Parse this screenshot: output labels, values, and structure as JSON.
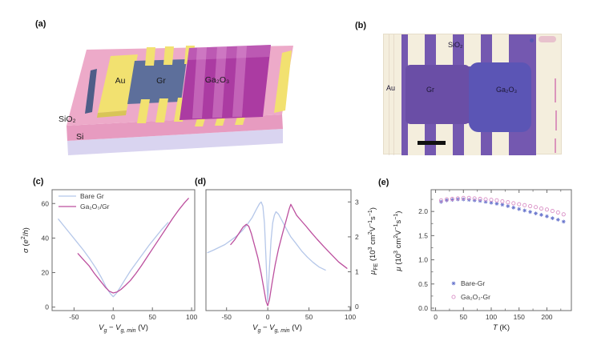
{
  "figure": {
    "panels": {
      "a": {
        "label": "(a)",
        "labels": {
          "au": "Au",
          "gr": "Gr",
          "ga2o3": "Ga₂O₃",
          "sio2": "SiO₂",
          "si": "Si"
        }
      },
      "b": {
        "label": "(b)",
        "labels": {
          "sio2": "SiO₂",
          "au": "Au",
          "gr": "Gr",
          "ga2o3": "Ga₂O₃"
        }
      },
      "c": {
        "label": "(c)"
      },
      "d": {
        "label": "(d)"
      },
      "e": {
        "label": "(e)"
      }
    },
    "colors": {
      "axis": "#6b6b6b",
      "sio2_top": "#edaac9",
      "sio2_front": "#e79bc0",
      "si_front": "#d9d4f0",
      "au": "#f2e170",
      "au_shade": "#d8c557",
      "gr_flake": "#5d6f9b",
      "gr_dark": "#4e5d88",
      "ga2o3_flake": "#ab3ba2",
      "ga2o3_light": "#e9a8dd",
      "micro_cream": "#f4eedd",
      "micro_purple": "#7458b0",
      "micro_gr": "#6a4ea6",
      "micro_ga2o3": "#5b55b5",
      "micro_label": "#1c1633",
      "scalebar": "#111111",
      "ink_pink": "#d06fae"
    }
  },
  "colors": {
    "axis": "#6b6b6b",
    "sio2_top": "#edaac9",
    "sio2_front": "#e79bc0",
    "si_front": "#d9d4f0",
    "au": "#f2e170",
    "au_shade": "#d8c557",
    "gr_flake": "#5d6f9b",
    "gr_dark": "#4e5d88",
    "ga2o3_flake": "#ab3ba2",
    "ga2o3_light": "#e9a8dd",
    "micro_cream": "#f4eedd",
    "micro_purple": "#7458b0",
    "micro_gr": "#6a4ea6",
    "micro_ga2o3": "#5b55b5",
    "micro_label": "#1c1633",
    "scalebar": "#111111",
    "ink_pink": "#d06fae"
  },
  "chart_data": [
    {
      "id": "c",
      "type": "line",
      "xlabel_segments": [
        [
          "V",
          "i"
        ],
        [
          "g",
          "sub i"
        ],
        [
          " − ",
          ""
        ],
        [
          "V",
          "i"
        ],
        [
          "g, min",
          "sub i"
        ],
        [
          " (V)",
          ""
        ]
      ],
      "ylabel_segments": [
        [
          "σ",
          "i"
        ],
        [
          " (",
          ""
        ],
        [
          "e",
          "i"
        ],
        [
          "2",
          "sup"
        ],
        [
          "/",
          ""
        ],
        [
          "h",
          "i"
        ],
        [
          ")",
          ""
        ]
      ],
      "xlim": [
        -78,
        104
      ],
      "ylim": [
        -2,
        68
      ],
      "xticks": [
        -50,
        0,
        50,
        100
      ],
      "xtick_labels": [
        "-50",
        "0",
        "50",
        "100"
      ],
      "yticks": [
        0,
        20,
        40,
        60
      ],
      "ytick_labels": [
        "0",
        "20",
        "40",
        "60"
      ],
      "legend": {
        "position": "top-left",
        "items": [
          {
            "label": "Bare Gr",
            "series": 0
          },
          {
            "label": "Ga₂O₃/Gr",
            "series": 1
          }
        ]
      },
      "series": [
        {
          "name": "Bare Gr",
          "key": "bare-gr",
          "color": "#b5c7e9",
          "marker": "none",
          "x": [
            -70,
            -62,
            -54,
            -46,
            -38,
            -30,
            -22,
            -15,
            -9,
            -4,
            0,
            4,
            9,
            15,
            22,
            30,
            38,
            46,
            54,
            62,
            70
          ],
          "y": [
            51,
            46.5,
            42,
            37.5,
            33,
            28,
            22.5,
            17,
            11.5,
            8,
            6,
            8,
            11.5,
            16,
            21,
            26,
            31,
            36,
            40.5,
            45,
            49
          ]
        },
        {
          "name": "Ga₂O₃/Gr",
          "key": "ga2o3-gr",
          "color": "#bc4f9e",
          "marker": "none",
          "x": [
            -45,
            -38,
            -31,
            -24,
            -17,
            -10,
            -5,
            0,
            5,
            10,
            16,
            22,
            29,
            36,
            44,
            52,
            60,
            68,
            76,
            84,
            91,
            96
          ],
          "y": [
            31,
            27.5,
            24,
            19.5,
            15.5,
            11.5,
            9.2,
            8.2,
            8.8,
            10.3,
            12.8,
            15.5,
            19.5,
            24,
            29.5,
            35,
            40.5,
            46,
            51.5,
            56.5,
            60.5,
            63
          ]
        }
      ]
    },
    {
      "id": "d",
      "type": "line",
      "xlabel_segments": [
        [
          "V",
          "i"
        ],
        [
          "g",
          "sub i"
        ],
        [
          " − ",
          ""
        ],
        [
          "V",
          "i"
        ],
        [
          "g, min",
          "sub i"
        ],
        [
          " (V)",
          ""
        ]
      ],
      "ylabel_segments": [
        [
          "μ",
          "i"
        ],
        [
          "FE",
          "sub"
        ],
        [
          " (10",
          ""
        ],
        [
          "3",
          "sup"
        ],
        [
          " cm",
          ""
        ],
        [
          "2",
          "sup"
        ],
        [
          "V",
          ""
        ],
        [
          "−1",
          "sup"
        ],
        [
          "s",
          ""
        ],
        [
          "−1",
          "sup"
        ],
        [
          ")",
          ""
        ]
      ],
      "xlim": [
        -75,
        101
      ],
      "ylim": [
        -0.11,
        3.35
      ],
      "yside": "right",
      "xticks": [
        -50,
        0,
        50,
        100
      ],
      "xtick_labels": [
        "-50",
        "0",
        "50",
        "100"
      ],
      "yticks": [
        0,
        1,
        2,
        3
      ],
      "ytick_labels": [
        "0",
        "1",
        "2",
        "3"
      ],
      "series": [
        {
          "name": "Bare Gr",
          "key": "bare-gr",
          "color": "#b5c7e9",
          "marker": "none",
          "x": [
            -73,
            -66,
            -59,
            -52,
            -45,
            -38,
            -31,
            -25,
            -19,
            -14,
            -10,
            -8,
            -6,
            -4,
            -2,
            0,
            2,
            4,
            6,
            8,
            10,
            13,
            17,
            22,
            28,
            34,
            41,
            48,
            55,
            62,
            70
          ],
          "y": [
            1.55,
            1.62,
            1.7,
            1.78,
            1.9,
            2.02,
            2.18,
            2.35,
            2.55,
            2.78,
            2.95,
            3.0,
            2.88,
            2.4,
            1.3,
            0.15,
            1.1,
            1.9,
            2.4,
            2.62,
            2.72,
            2.65,
            2.48,
            2.25,
            2.0,
            1.82,
            1.6,
            1.42,
            1.27,
            1.14,
            1.05
          ]
        },
        {
          "name": "Ga₂O₃/Gr",
          "key": "ga2o3-gr",
          "color": "#bc4f9e",
          "marker": "none",
          "x": [
            -45,
            -40,
            -35,
            -30,
            -26,
            -23,
            -20,
            -16,
            -12,
            -8,
            -5,
            -2,
            0,
            2,
            5,
            9,
            13,
            18,
            22,
            26,
            28,
            31,
            35,
            40,
            46,
            53,
            60,
            68,
            77,
            86,
            96
          ],
          "y": [
            1.78,
            1.92,
            2.1,
            2.28,
            2.36,
            2.3,
            2.1,
            1.75,
            1.4,
            0.95,
            0.55,
            0.15,
            0.03,
            0.2,
            0.65,
            1.2,
            1.65,
            2.1,
            2.45,
            2.8,
            2.93,
            2.8,
            2.62,
            2.48,
            2.32,
            2.12,
            1.93,
            1.72,
            1.5,
            1.28,
            1.1
          ]
        }
      ]
    },
    {
      "id": "e",
      "type": "scatter",
      "xlabel_segments": [
        [
          "T",
          "i"
        ],
        [
          " (K)",
          ""
        ]
      ],
      "ylabel_segments": [
        [
          "μ",
          "i"
        ],
        [
          " (10",
          ""
        ],
        [
          "3",
          "sup"
        ],
        [
          " cm",
          ""
        ],
        [
          "2",
          "sup"
        ],
        [
          "V",
          ""
        ],
        [
          "−1",
          "sup"
        ],
        [
          "s",
          ""
        ],
        [
          "−1",
          "sup"
        ],
        [
          ")",
          ""
        ]
      ],
      "xlim": [
        -8,
        244
      ],
      "ylim": [
        -0.05,
        2.45
      ],
      "mirror_x": true,
      "xticks": [
        0,
        50,
        100,
        150,
        200
      ],
      "xtick_labels": [
        "0",
        "50",
        "100",
        "150",
        "200"
      ],
      "xminor": [
        25,
        75,
        125,
        175,
        225
      ],
      "yticks": [
        0,
        0.5,
        1,
        1.5,
        2
      ],
      "ytick_labels": [
        "0.0",
        "0.5",
        "1.0",
        "1.5",
        "2.0"
      ],
      "yminor": [
        0.25,
        0.75,
        1.25,
        1.75,
        2.25
      ],
      "legend": {
        "position": "lower-left",
        "items": [
          {
            "label": "Bare-Gr",
            "series": 0
          },
          {
            "label": "Ga₂O₃-Gr",
            "series": 1
          }
        ]
      },
      "series": [
        {
          "name": "Bare-Gr",
          "key": "bare-gr",
          "color": "#6673cc",
          "marker": "star",
          "x": [
            10,
            20,
            30,
            40,
            50,
            60,
            70,
            80,
            90,
            100,
            110,
            120,
            130,
            140,
            150,
            160,
            170,
            180,
            190,
            200,
            210,
            220,
            230
          ],
          "y": [
            2.2,
            2.23,
            2.24,
            2.25,
            2.25,
            2.24,
            2.23,
            2.22,
            2.2,
            2.18,
            2.16,
            2.14,
            2.11,
            2.08,
            2.05,
            2.02,
            1.99,
            1.96,
            1.93,
            1.9,
            1.86,
            1.83,
            1.79
          ]
        },
        {
          "name": "Ga₂O₃-Gr",
          "key": "ga2o3-gr",
          "color": "#d98fc6",
          "marker": "circle",
          "x": [
            10,
            20,
            30,
            40,
            50,
            60,
            70,
            80,
            90,
            100,
            110,
            120,
            130,
            140,
            150,
            160,
            170,
            180,
            190,
            200,
            210,
            220,
            230
          ],
          "y": [
            2.23,
            2.25,
            2.26,
            2.27,
            2.28,
            2.28,
            2.27,
            2.26,
            2.25,
            2.24,
            2.23,
            2.21,
            2.19,
            2.17,
            2.15,
            2.13,
            2.11,
            2.09,
            2.06,
            2.04,
            2.01,
            1.98,
            1.94
          ]
        }
      ]
    }
  ]
}
